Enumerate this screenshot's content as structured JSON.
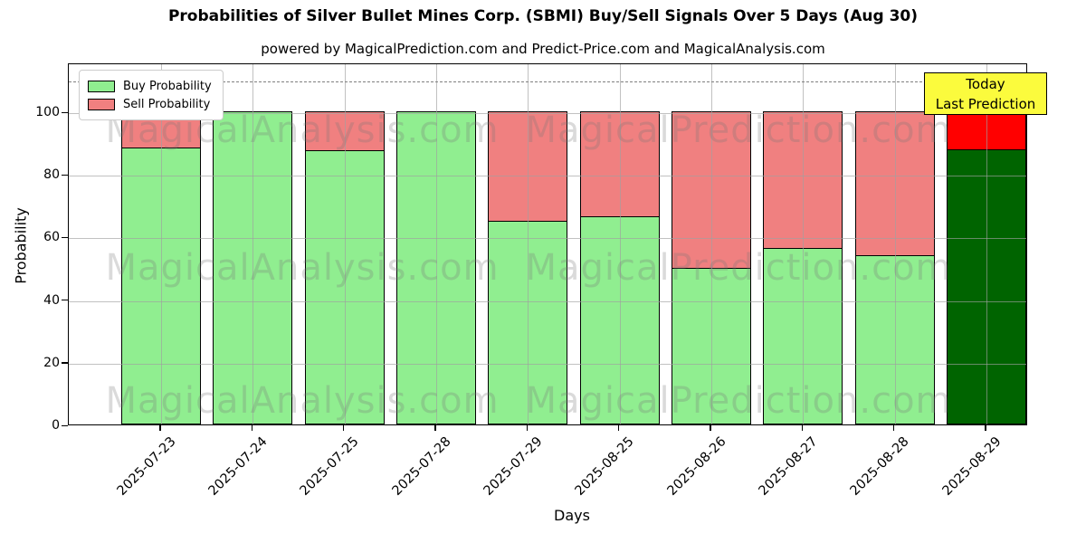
{
  "title": "Probabilities of Silver Bullet Mines Corp. (SBMI) Buy/Sell Signals Over 5 Days (Aug 30)",
  "subtitle": "powered by MagicalPrediction.com and Predict-Price.com and MagicalAnalysis.com",
  "watermark": {
    "left": "MagicalAnalysis.com",
    "right": "MagicalPrediction.com"
  },
  "annotation": {
    "line1": "Today",
    "line2": "Last Prediction",
    "bg_color": "#FBFB3D"
  },
  "axes": {
    "xlabel": "Days",
    "ylabel": "Probability"
  },
  "chart_data": {
    "type": "bar",
    "stacked": true,
    "title": "Probabilities of Silver Bullet Mines Corp. (SBMI) Buy/Sell Signals Over 5 Days (Aug 30)",
    "xlabel": "Days",
    "ylabel": "Probability",
    "categories": [
      "2025-07-23",
      "2025-07-24",
      "2025-07-25",
      "2025-07-28",
      "2025-07-29",
      "2025-08-25",
      "2025-08-26",
      "2025-08-27",
      "2025-08-28",
      "2025-08-29"
    ],
    "series": [
      {
        "name": "Buy Probability",
        "color": "#90EE90",
        "values": [
          88.5,
          100,
          87.5,
          100,
          65,
          66.5,
          50,
          56.5,
          54,
          88
        ]
      },
      {
        "name": "Sell Probability",
        "color": "#F08080",
        "values": [
          11.5,
          0,
          12.5,
          0,
          35,
          33.5,
          50,
          43.5,
          46,
          12
        ]
      }
    ],
    "highlight": {
      "index": 9,
      "buy_color": "#006400",
      "sell_color": "#FF0000",
      "note": "Today / Last Prediction"
    },
    "yticks": [
      0,
      20,
      40,
      60,
      80,
      100
    ],
    "ylim": [
      0,
      115.6
    ],
    "dashed_threshold_y": 110,
    "grid": true,
    "legend_position": "upper left",
    "bar_edge_color": "#000000"
  }
}
